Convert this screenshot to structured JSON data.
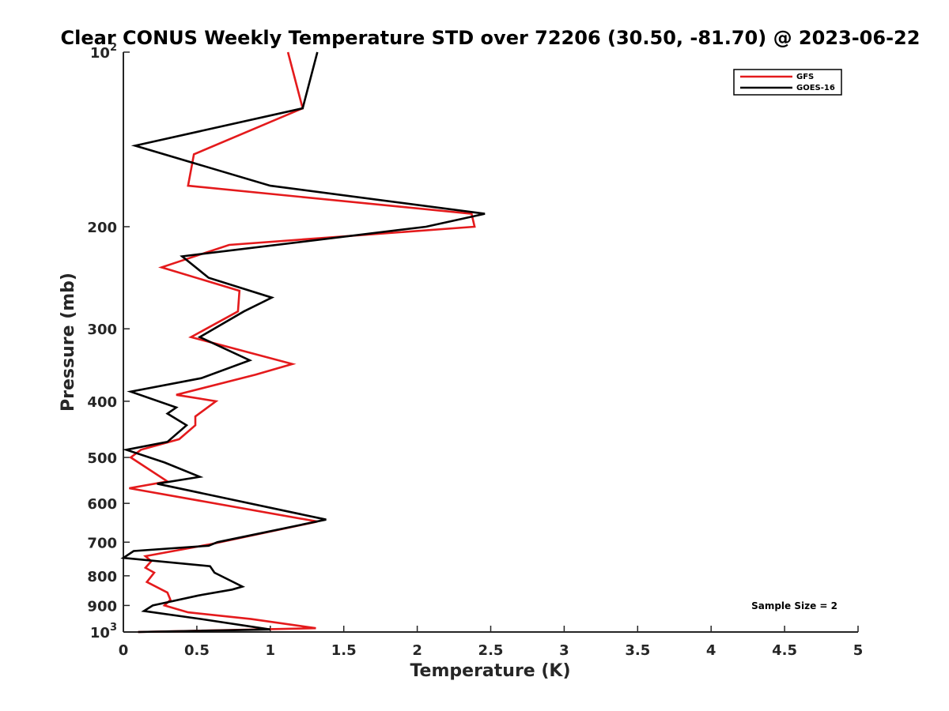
{
  "chart_data": {
    "type": "line",
    "title": "Clear CONUS Weekly Temperature STD over 72206 (30.50, -81.70) @ 2023-06-22",
    "xlabel": "Temperature (K)",
    "ylabel": "Pressure (mb)",
    "xlim": [
      0,
      5
    ],
    "ylim": [
      100,
      1000
    ],
    "y_scale": "log",
    "y_reversed": true,
    "x_ticks": [
      "0",
      "0.5",
      "1",
      "1.5",
      "2",
      "2.5",
      "3",
      "3.5",
      "4",
      "4.5",
      "5"
    ],
    "y_ticks": [
      {
        "value": 100,
        "base": "10",
        "exp": "2"
      },
      {
        "value": 200,
        "label": "200"
      },
      {
        "value": 300,
        "label": "300"
      },
      {
        "value": 400,
        "label": "400"
      },
      {
        "value": 500,
        "label": "500"
      },
      {
        "value": 600,
        "label": "600"
      },
      {
        "value": 700,
        "label": "700"
      },
      {
        "value": 800,
        "label": "800"
      },
      {
        "value": 900,
        "label": "900"
      },
      {
        "value": 1000,
        "base": "10",
        "exp": "3"
      }
    ],
    "grid": false,
    "legend_position": "top-right",
    "annotation": "Sample Size = 2",
    "series": [
      {
        "name": "GFS",
        "color": "#e41a1c",
        "points": [
          [
            1.12,
            100
          ],
          [
            1.22,
            125
          ],
          [
            0.48,
            150
          ],
          [
            0.44,
            170
          ],
          [
            2.37,
            190
          ],
          [
            2.39,
            200
          ],
          [
            0.72,
            215
          ],
          [
            0.26,
            235
          ],
          [
            0.79,
            258
          ],
          [
            0.78,
            280
          ],
          [
            0.46,
            310
          ],
          [
            1.15,
            345
          ],
          [
            0.9,
            360
          ],
          [
            0.36,
            390
          ],
          [
            0.63,
            400
          ],
          [
            0.49,
            425
          ],
          [
            0.49,
            440
          ],
          [
            0.38,
            465
          ],
          [
            0.12,
            485
          ],
          [
            0.05,
            500
          ],
          [
            0.3,
            550
          ],
          [
            0.04,
            565
          ],
          [
            1.32,
            645
          ],
          [
            0.6,
            705
          ],
          [
            0.15,
            740
          ],
          [
            0.19,
            755
          ],
          [
            0.15,
            775
          ],
          [
            0.21,
            790
          ],
          [
            0.16,
            820
          ],
          [
            0.3,
            855
          ],
          [
            0.32,
            880
          ],
          [
            0.28,
            900
          ],
          [
            0.44,
            925
          ],
          [
            0.87,
            950
          ],
          [
            1.31,
            985
          ],
          [
            0.1,
            1000
          ]
        ]
      },
      {
        "name": "GOES-16",
        "color": "#000000",
        "points": [
          [
            1.32,
            100
          ],
          [
            1.22,
            125
          ],
          [
            0.08,
            145
          ],
          [
            1.0,
            170
          ],
          [
            2.46,
            190
          ],
          [
            2.06,
            200
          ],
          [
            0.4,
            225
          ],
          [
            0.58,
            245
          ],
          [
            1.01,
            265
          ],
          [
            0.82,
            280
          ],
          [
            0.52,
            310
          ],
          [
            0.86,
            340
          ],
          [
            0.53,
            365
          ],
          [
            0.05,
            385
          ],
          [
            0.36,
            410
          ],
          [
            0.3,
            420
          ],
          [
            0.43,
            440
          ],
          [
            0.3,
            470
          ],
          [
            0.02,
            485
          ],
          [
            0.28,
            510
          ],
          [
            0.52,
            540
          ],
          [
            0.23,
            555
          ],
          [
            1.38,
            640
          ],
          [
            0.64,
            700
          ],
          [
            0.58,
            710
          ],
          [
            0.07,
            725
          ],
          [
            0.0,
            745
          ],
          [
            0.59,
            770
          ],
          [
            0.62,
            790
          ],
          [
            0.81,
            835
          ],
          [
            0.74,
            845
          ],
          [
            0.51,
            865
          ],
          [
            0.2,
            900
          ],
          [
            0.14,
            920
          ],
          [
            0.53,
            950
          ],
          [
            1.0,
            990
          ],
          [
            0.1,
            1000
          ]
        ]
      }
    ]
  }
}
